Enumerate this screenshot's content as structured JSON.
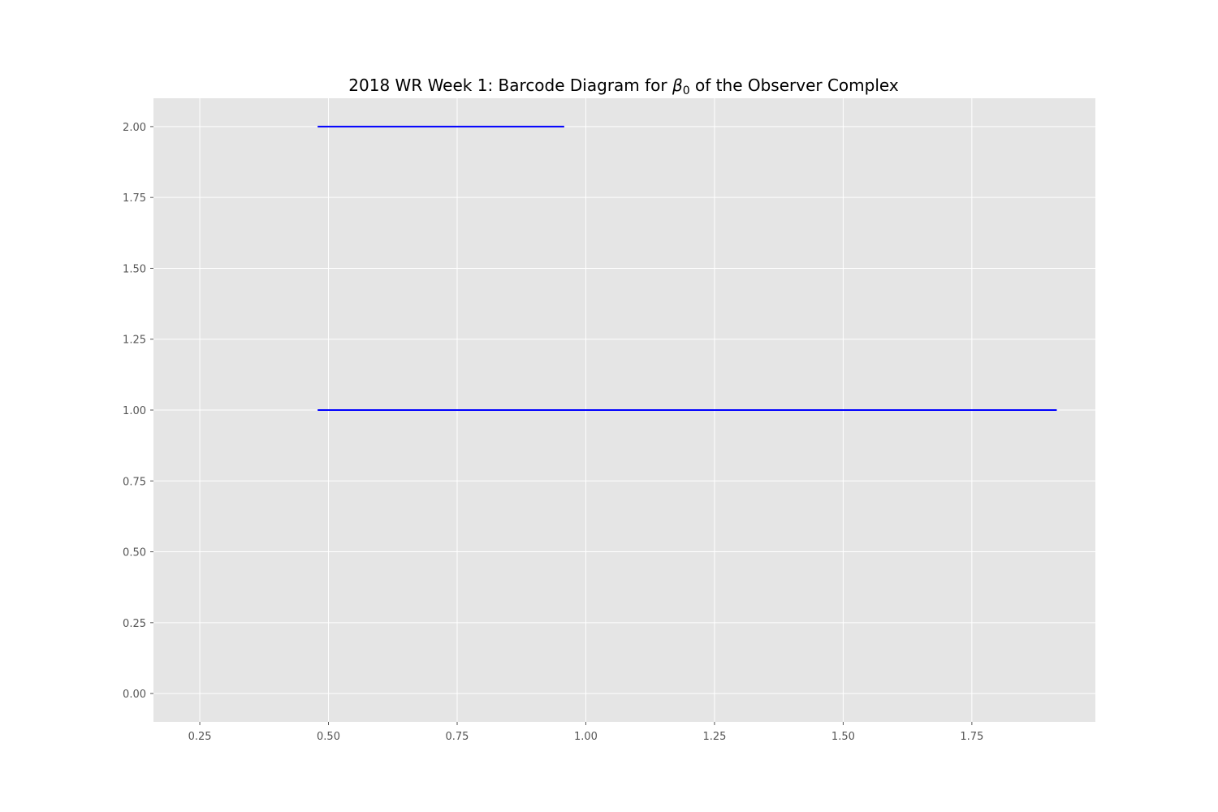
{
  "chart_data": {
    "type": "barcode",
    "title": "2018 WR Week 1: Barcode Diagram for β0 of the Observer Complex",
    "title_parts": {
      "before": "2018 WR Week 1: Barcode Diagram for ",
      "symbol": "β",
      "subscript": "0",
      "after": " of the Observer Complex"
    },
    "xlabel": "",
    "ylabel": "",
    "xlim": [
      0.16,
      1.99
    ],
    "ylim": [
      -0.1,
      2.1
    ],
    "xticks": [
      0.25,
      0.5,
      0.75,
      1.0,
      1.25,
      1.5,
      1.75
    ],
    "xtick_labels": [
      "0.25",
      "0.50",
      "0.75",
      "1.00",
      "1.25",
      "1.50",
      "1.75"
    ],
    "yticks": [
      0.0,
      0.25,
      0.5,
      0.75,
      1.0,
      1.25,
      1.5,
      1.75,
      2.0
    ],
    "ytick_labels": [
      "0.00",
      "0.25",
      "0.50",
      "0.75",
      "1.00",
      "1.25",
      "1.50",
      "1.75",
      "2.00"
    ],
    "bars": [
      {
        "y": 1,
        "birth": 0.479,
        "death": 1.915
      },
      {
        "y": 2,
        "birth": 0.479,
        "death": 0.958
      }
    ],
    "grid": true,
    "legend": "none",
    "colors": {
      "bar": "#0000ff",
      "plot_background": "#e5e5e5",
      "grid": "#ffffff",
      "tick_label": "#555555",
      "title": "#000000"
    }
  }
}
